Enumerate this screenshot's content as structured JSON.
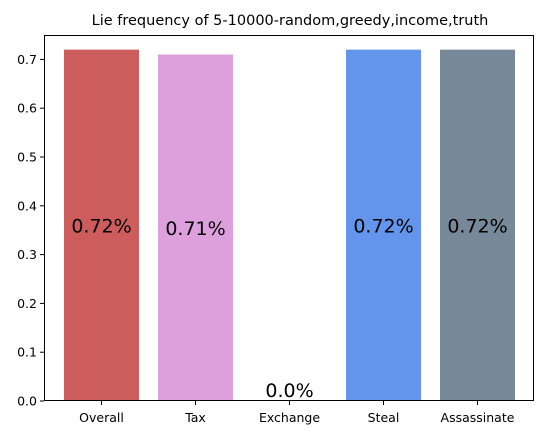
{
  "chart_data": {
    "type": "bar",
    "title": "Lie frequency of 5-10000-random,greedy,income,truth",
    "xlabel": "",
    "ylabel": "",
    "categories": [
      "Overall",
      "Tax",
      "Exchange",
      "Steal",
      "Assassinate"
    ],
    "values": [
      0.72,
      0.71,
      0.0,
      0.72,
      0.72
    ],
    "data_labels": [
      "0.72%",
      "0.71%",
      "0.0%",
      "0.72%",
      "0.72%"
    ],
    "colors": [
      "#cd5c5c",
      "#dda0dd",
      "#ffffff",
      "#6495ed",
      "#778899"
    ],
    "ylim": [
      0,
      0.75
    ],
    "yticks": [
      0.0,
      0.1,
      0.2,
      0.3,
      0.4,
      0.5,
      0.6,
      0.7
    ],
    "ytick_labels": [
      "0.0",
      "0.1",
      "0.2",
      "0.3",
      "0.4",
      "0.5",
      "0.6",
      "0.7"
    ],
    "grid": false,
    "legend": "none"
  }
}
